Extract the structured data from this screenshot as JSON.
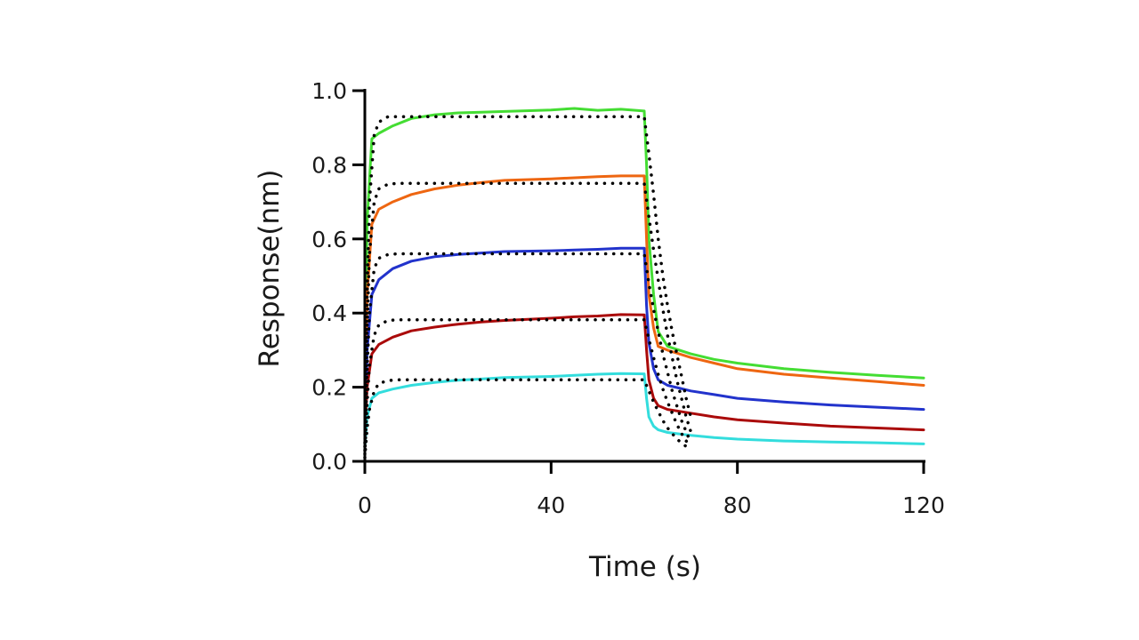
{
  "chart_data": {
    "type": "line",
    "xlabel": "Time (s)",
    "ylabel": "Response(nm)",
    "xlim": [
      0,
      120
    ],
    "ylim": [
      0,
      1.0
    ],
    "xticks": [
      "0",
      "40",
      "80",
      "120"
    ],
    "yticks": [
      "0.0",
      "0.2",
      "0.4",
      "0.6",
      "0.8",
      "1.0"
    ],
    "grid": false,
    "legend": "none",
    "series": [
      {
        "color": "#44dd33",
        "x": [
          0,
          0.5,
          1.5,
          3,
          6,
          10,
          15,
          20,
          25,
          30,
          40,
          45,
          50,
          55,
          60,
          60.5,
          61,
          62,
          63,
          65,
          70,
          75,
          80,
          90,
          100,
          110,
          120
        ],
        "y": [
          0.2,
          0.65,
          0.87,
          0.885,
          0.905,
          0.925,
          0.935,
          0.94,
          0.942,
          0.944,
          0.948,
          0.952,
          0.947,
          0.95,
          0.945,
          0.8,
          0.6,
          0.45,
          0.35,
          0.31,
          0.29,
          0.275,
          0.265,
          0.25,
          0.24,
          0.232,
          0.225
        ]
      },
      {
        "color": "#ee6611",
        "x": [
          0,
          0.5,
          1.5,
          3,
          6,
          10,
          15,
          20,
          25,
          30,
          40,
          45,
          50,
          55,
          60,
          60.5,
          61,
          62,
          63,
          65,
          70,
          75,
          80,
          90,
          100,
          110,
          120
        ],
        "y": [
          0.15,
          0.45,
          0.64,
          0.68,
          0.7,
          0.72,
          0.735,
          0.745,
          0.752,
          0.758,
          0.762,
          0.765,
          0.768,
          0.77,
          0.77,
          0.6,
          0.45,
          0.36,
          0.31,
          0.3,
          0.28,
          0.265,
          0.25,
          0.235,
          0.225,
          0.215,
          0.205
        ]
      },
      {
        "color": "#2233cc",
        "x": [
          0,
          0.5,
          1.5,
          3,
          6,
          10,
          15,
          20,
          25,
          30,
          40,
          45,
          50,
          55,
          60,
          60.5,
          61,
          62,
          63,
          65,
          70,
          75,
          80,
          90,
          100,
          110,
          120
        ],
        "y": [
          0.05,
          0.3,
          0.45,
          0.49,
          0.52,
          0.54,
          0.552,
          0.558,
          0.562,
          0.566,
          0.568,
          0.57,
          0.572,
          0.575,
          0.575,
          0.42,
          0.32,
          0.25,
          0.22,
          0.205,
          0.19,
          0.18,
          0.17,
          0.16,
          0.152,
          0.146,
          0.14
        ]
      },
      {
        "color": "#aa0a0a",
        "x": [
          0,
          0.5,
          1.5,
          3,
          6,
          10,
          15,
          20,
          25,
          30,
          40,
          45,
          50,
          55,
          60,
          60.5,
          61,
          62,
          63,
          65,
          70,
          75,
          80,
          90,
          100,
          110,
          120
        ],
        "y": [
          0.08,
          0.2,
          0.29,
          0.315,
          0.335,
          0.352,
          0.362,
          0.37,
          0.376,
          0.38,
          0.386,
          0.39,
          0.392,
          0.396,
          0.395,
          0.3,
          0.22,
          0.17,
          0.15,
          0.14,
          0.13,
          0.12,
          0.112,
          0.103,
          0.095,
          0.09,
          0.085
        ]
      },
      {
        "color": "#33dddd",
        "x": [
          0,
          0.5,
          1.5,
          3,
          6,
          10,
          15,
          20,
          25,
          30,
          40,
          45,
          50,
          55,
          60,
          60.5,
          61,
          62,
          63,
          65,
          70,
          75,
          80,
          90,
          100,
          110,
          120
        ],
        "y": [
          0.04,
          0.12,
          0.17,
          0.185,
          0.195,
          0.205,
          0.213,
          0.219,
          0.222,
          0.226,
          0.229,
          0.232,
          0.235,
          0.237,
          0.236,
          0.17,
          0.12,
          0.095,
          0.085,
          0.078,
          0.07,
          0.064,
          0.06,
          0.055,
          0.052,
          0.05,
          0.047
        ]
      }
    ],
    "fits": [
      {
        "x": [
          0,
          0.5,
          1,
          2,
          3,
          5,
          7,
          60,
          61,
          62,
          63,
          64,
          65,
          66,
          67,
          68,
          69,
          70
        ],
        "y": [
          0.05,
          0.45,
          0.7,
          0.88,
          0.915,
          0.93,
          0.93,
          0.93,
          0.83,
          0.72,
          0.6,
          0.5,
          0.42,
          0.35,
          0.29,
          0.23,
          0.17,
          0.12
        ]
      },
      {
        "x": [
          0,
          0.5,
          1,
          2,
          3,
          5,
          7,
          60,
          61,
          62,
          63,
          64,
          65,
          66,
          67,
          68,
          69,
          70
        ],
        "y": [
          0.04,
          0.36,
          0.56,
          0.7,
          0.735,
          0.748,
          0.75,
          0.75,
          0.66,
          0.57,
          0.49,
          0.41,
          0.34,
          0.28,
          0.22,
          0.17,
          0.12,
          0.08
        ]
      },
      {
        "x": [
          0,
          0.5,
          1,
          2,
          3,
          5,
          7,
          60,
          61,
          62,
          63,
          64,
          65,
          66,
          67,
          68,
          69,
          70
        ],
        "y": [
          0.03,
          0.25,
          0.4,
          0.52,
          0.548,
          0.558,
          0.56,
          0.56,
          0.48,
          0.41,
          0.35,
          0.29,
          0.24,
          0.19,
          0.15,
          0.11,
          0.08,
          0.05
        ]
      },
      {
        "x": [
          0,
          0.5,
          1,
          2,
          3,
          5,
          7,
          60,
          61,
          62,
          63,
          64,
          65,
          66,
          67,
          68,
          69,
          70
        ],
        "y": [
          0.02,
          0.16,
          0.26,
          0.34,
          0.368,
          0.38,
          0.382,
          0.382,
          0.33,
          0.28,
          0.235,
          0.195,
          0.16,
          0.13,
          0.1,
          0.075,
          0.055,
          0.04
        ]
      },
      {
        "x": [
          0,
          0.5,
          1,
          2,
          3,
          5,
          7,
          60,
          61,
          62,
          63,
          64,
          65,
          66,
          67,
          68,
          69,
          70
        ],
        "y": [
          0.01,
          0.09,
          0.14,
          0.19,
          0.21,
          0.218,
          0.22,
          0.22,
          0.19,
          0.16,
          0.135,
          0.11,
          0.09,
          0.075,
          0.06,
          0.05,
          0.04,
          0.03
        ]
      }
    ]
  }
}
